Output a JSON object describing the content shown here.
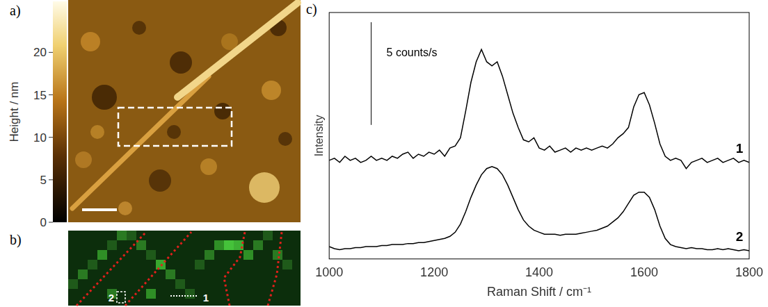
{
  "panels": {
    "a": {
      "label": "a)",
      "colorbar": {
        "title": "Height / nm",
        "range": [
          0,
          26
        ],
        "ticks": [
          0,
          5,
          10,
          15,
          20
        ]
      }
    },
    "b": {
      "label": "b)",
      "markers": [
        "2",
        "1"
      ]
    }
  },
  "chart_data": {
    "type": "line",
    "label": "c)",
    "x_label": "Raman Shift / cm⁻¹",
    "y_label": "Intensity",
    "xlim": [
      1000,
      1800
    ],
    "xticks": [
      1000,
      1200,
      1400,
      1600,
      1800
    ],
    "ylim": [
      0,
      12
    ],
    "tick_labels": "x",
    "grid": false,
    "scale_bar": {
      "value": 5,
      "label": "5 counts/s"
    },
    "x": [
      1000,
      1010,
      1020,
      1030,
      1040,
      1050,
      1060,
      1070,
      1080,
      1090,
      1100,
      1110,
      1120,
      1130,
      1140,
      1150,
      1160,
      1170,
      1180,
      1190,
      1200,
      1210,
      1220,
      1230,
      1240,
      1250,
      1260,
      1270,
      1280,
      1290,
      1300,
      1310,
      1320,
      1330,
      1340,
      1350,
      1360,
      1370,
      1380,
      1390,
      1400,
      1410,
      1420,
      1430,
      1440,
      1450,
      1460,
      1470,
      1480,
      1490,
      1500,
      1510,
      1520,
      1530,
      1540,
      1550,
      1560,
      1570,
      1580,
      1590,
      1600,
      1610,
      1620,
      1630,
      1640,
      1650,
      1660,
      1670,
      1680,
      1690,
      1700,
      1710,
      1720,
      1730,
      1740,
      1750,
      1760,
      1770,
      1780,
      1790,
      1800
    ],
    "series": [
      {
        "name": "1",
        "color": "#000000",
        "values": [
          4.8,
          4.9,
          4.7,
          5.0,
          4.8,
          4.9,
          4.7,
          4.8,
          5.0,
          4.8,
          4.9,
          4.8,
          5.0,
          4.9,
          5.1,
          5.2,
          4.9,
          5.1,
          5.0,
          5.2,
          5.1,
          5.3,
          5.0,
          5.4,
          5.5,
          5.9,
          7.2,
          8.6,
          9.6,
          10.2,
          9.6,
          9.4,
          9.6,
          8.9,
          8.0,
          7.1,
          6.4,
          5.8,
          5.7,
          5.9,
          5.4,
          5.3,
          5.5,
          5.2,
          5.3,
          5.4,
          5.2,
          5.4,
          5.3,
          5.4,
          5.3,
          5.4,
          5.5,
          5.4,
          5.6,
          5.9,
          6.1,
          6.4,
          7.4,
          8.0,
          8.1,
          7.5,
          6.6,
          5.6,
          5.0,
          4.8,
          4.9,
          4.8,
          4.4,
          4.7,
          4.8,
          4.9,
          4.7,
          4.8,
          4.9,
          4.7,
          4.8,
          4.9,
          4.7,
          4.8,
          4.7
        ]
      },
      {
        "name": "2",
        "color": "#000000",
        "values": [
          0.6,
          0.5,
          0.45,
          0.5,
          0.5,
          0.55,
          0.55,
          0.6,
          0.6,
          0.6,
          0.65,
          0.65,
          0.7,
          0.7,
          0.7,
          0.75,
          0.75,
          0.8,
          0.8,
          0.85,
          0.9,
          0.95,
          1.0,
          1.1,
          1.3,
          1.7,
          2.3,
          3.0,
          3.6,
          4.1,
          4.4,
          4.5,
          4.4,
          4.1,
          3.6,
          3.0,
          2.4,
          1.9,
          1.6,
          1.4,
          1.3,
          1.2,
          1.2,
          1.2,
          1.15,
          1.2,
          1.2,
          1.2,
          1.25,
          1.3,
          1.35,
          1.4,
          1.5,
          1.6,
          1.8,
          2.0,
          2.3,
          2.7,
          3.1,
          3.25,
          3.25,
          3.0,
          2.4,
          1.6,
          1.0,
          0.7,
          0.6,
          0.55,
          0.5,
          0.55,
          0.5,
          0.5,
          0.45,
          0.45,
          0.5,
          0.45,
          0.5,
          0.45,
          0.4,
          0.45,
          0.4
        ]
      }
    ]
  }
}
